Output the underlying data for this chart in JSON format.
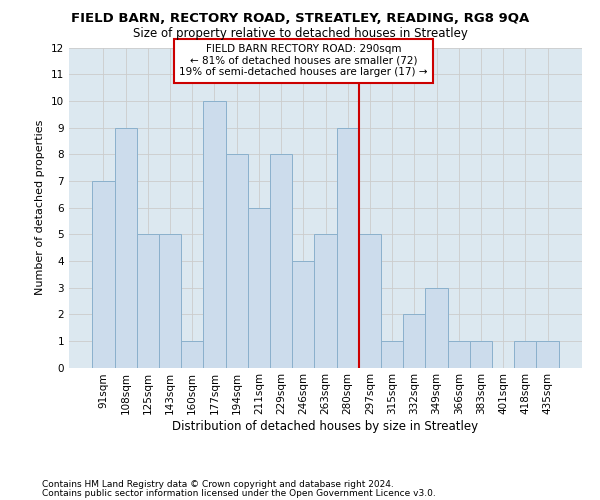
{
  "title": "FIELD BARN, RECTORY ROAD, STREATLEY, READING, RG8 9QA",
  "subtitle": "Size of property relative to detached houses in Streatley",
  "xlabel": "Distribution of detached houses by size in Streatley",
  "ylabel": "Number of detached properties",
  "categories": [
    "91sqm",
    "108sqm",
    "125sqm",
    "143sqm",
    "160sqm",
    "177sqm",
    "194sqm",
    "211sqm",
    "229sqm",
    "246sqm",
    "263sqm",
    "280sqm",
    "297sqm",
    "315sqm",
    "332sqm",
    "349sqm",
    "366sqm",
    "383sqm",
    "401sqm",
    "418sqm",
    "435sqm"
  ],
  "values": [
    7,
    9,
    5,
    5,
    1,
    10,
    8,
    6,
    8,
    4,
    5,
    9,
    5,
    1,
    2,
    3,
    1,
    1,
    0,
    1,
    1
  ],
  "bar_color": "#ccdcec",
  "bar_edge_color": "#8ab0cc",
  "vline_color": "#cc0000",
  "annotation_line1": "FIELD BARN RECTORY ROAD: 290sqm",
  "annotation_line2": "← 81% of detached houses are smaller (72)",
  "annotation_line3": "19% of semi-detached houses are larger (17) →",
  "annotation_box_color": "#ffffff",
  "annotation_box_edge_color": "#cc0000",
  "ylim": [
    0,
    12
  ],
  "yticks": [
    0,
    1,
    2,
    3,
    4,
    5,
    6,
    7,
    8,
    9,
    10,
    11,
    12
  ],
  "grid_color": "#cccccc",
  "background_color": "#dce8f0",
  "footer1": "Contains HM Land Registry data © Crown copyright and database right 2024.",
  "footer2": "Contains public sector information licensed under the Open Government Licence v3.0.",
  "title_fontsize": 9.5,
  "subtitle_fontsize": 8.5,
  "annotation_fontsize": 7.5,
  "ylabel_fontsize": 8,
  "xlabel_fontsize": 8.5,
  "footer_fontsize": 6.5,
  "tick_fontsize": 7.5
}
